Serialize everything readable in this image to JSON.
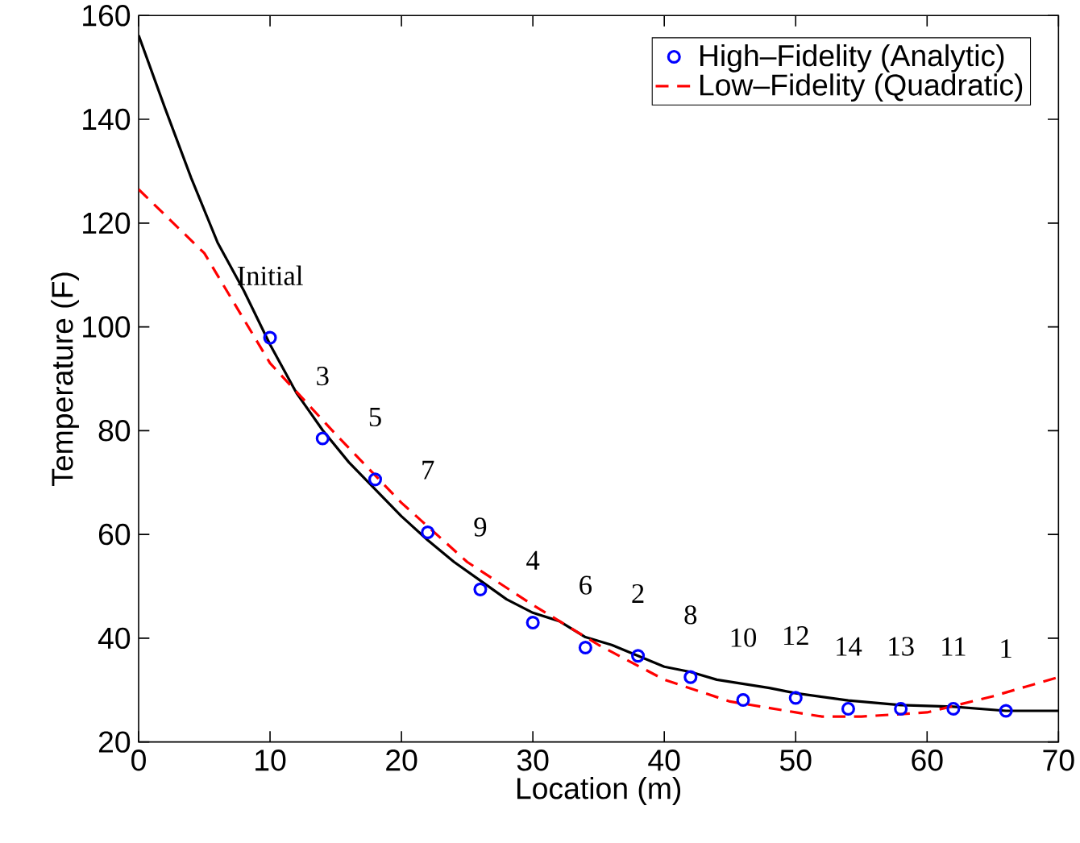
{
  "chart_data": {
    "type": "line",
    "xlabel": "Location (m)",
    "ylabel": "Temperature (F)",
    "xlim": [
      0,
      70
    ],
    "ylim": [
      20,
      160
    ],
    "xticks": [
      0,
      10,
      20,
      30,
      40,
      50,
      60,
      70
    ],
    "yticks": [
      20,
      40,
      60,
      80,
      100,
      120,
      140,
      160
    ],
    "legend": "top right",
    "grid": false,
    "series": [
      {
        "name": "High–Fidelity (Analytic)",
        "type": "scatter",
        "marker": "circle",
        "color": "#0000ff",
        "x": [
          10,
          14,
          18,
          22,
          26,
          30,
          34,
          38,
          42,
          46,
          50,
          54,
          58,
          62,
          66
        ],
        "values": [
          97.9,
          78.5,
          70.6,
          60.4,
          49.4,
          43.0,
          38.2,
          36.6,
          32.5,
          28.1,
          28.5,
          26.4,
          26.4,
          26.4,
          26.0
        ]
      },
      {
        "line_style": "solid",
        "color": "#000000",
        "x": [
          0,
          2,
          4,
          6,
          8,
          10,
          12,
          14,
          16,
          18,
          20,
          22,
          24,
          26,
          28,
          30,
          32,
          34,
          36,
          38,
          40,
          42,
          44,
          46,
          48,
          50,
          54,
          58,
          62,
          66,
          70
        ],
        "values": [
          156.2,
          142.2,
          128.7,
          116.3,
          107,
          96.6,
          87.3,
          80.1,
          73.9,
          68.7,
          63.5,
          58.9,
          54.7,
          51.1,
          47.5,
          44.9,
          43.3,
          40.2,
          38.7,
          36.6,
          34.5,
          33.5,
          32.0,
          31.2,
          30.4,
          29.4,
          28.0,
          27.1,
          26.8,
          26.0,
          26.0
        ]
      },
      {
        "name": "Low–Fidelity (Quadratic)",
        "type": "line",
        "line_style": "dashed",
        "color": "#ff0000",
        "x": [
          0,
          5,
          10,
          15,
          20,
          25,
          30,
          35,
          40,
          45,
          50,
          52,
          55,
          60,
          65,
          70
        ],
        "values": [
          126.5,
          114.2,
          93.0,
          79.3,
          66.1,
          54.7,
          46.4,
          38.7,
          32.0,
          27.8,
          25.7,
          24.9,
          24.9,
          25.7,
          28.8,
          32.5
        ]
      }
    ],
    "annotations": [
      "Initial",
      "3",
      "5",
      "7",
      "9",
      "4",
      "6",
      "2",
      "8",
      "10",
      "12",
      "14",
      "13",
      "11",
      "1"
    ]
  }
}
